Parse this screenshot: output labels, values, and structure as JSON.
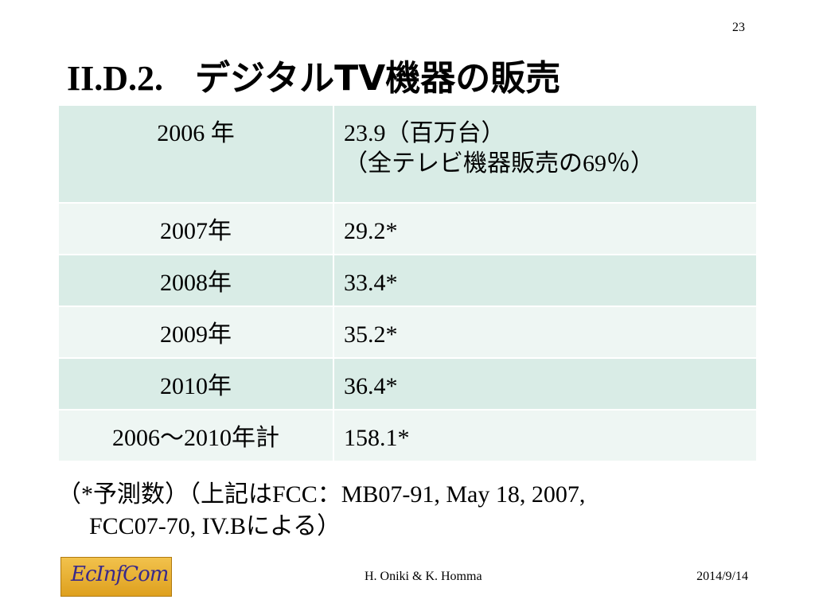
{
  "page_number": "23",
  "title": {
    "number": "II.D.2.",
    "text": "デジタルTV機器の販売"
  },
  "table": {
    "rows": [
      {
        "year": "2006 年",
        "value_lines": [
          "23.9（百万台）",
          "（全テレビ機器販売の69％）"
        ]
      },
      {
        "year": "2007年",
        "value_lines": [
          "29.2*"
        ]
      },
      {
        "year": "2008年",
        "value_lines": [
          "33.4*"
        ]
      },
      {
        "year": "2009年",
        "value_lines": [
          "35.2*"
        ]
      },
      {
        "year": "2010年",
        "value_lines": [
          "36.4*"
        ]
      },
      {
        "year": "2006～2010年計",
        "value_lines": [
          "158.1*"
        ]
      }
    ]
  },
  "note": {
    "line1": "（*予測数）（上記はFCC：MB07-91, May 18, 2007,",
    "line2": "FCC07-70, IV.Bによる）"
  },
  "footer": {
    "logo_text": "EcInfCom",
    "authors": "H. Oniki & K. Homma",
    "date": "2014/9/14"
  },
  "colors": {
    "row_dark": "#d9ece6",
    "row_light": "#eef6f3",
    "logo_bg": "#e6ac2c"
  }
}
